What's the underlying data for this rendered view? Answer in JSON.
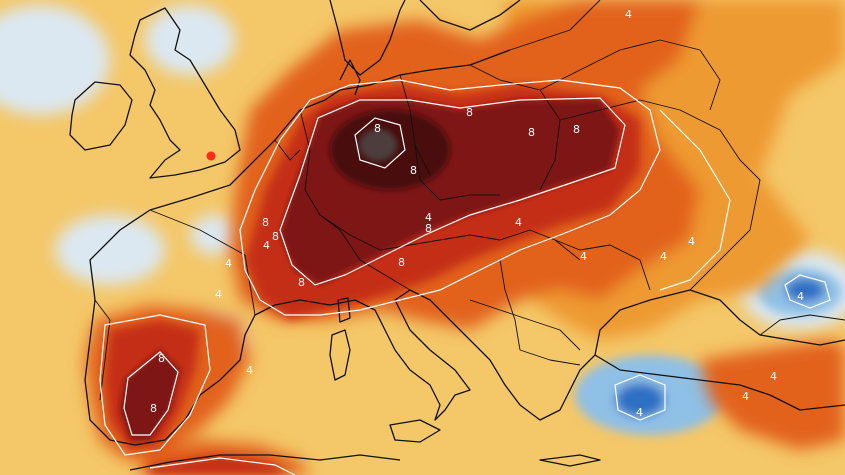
{
  "map": {
    "region": "Europe",
    "variable": "temperature anomaly",
    "colors": {
      "sea_pale": "#f6e9c4",
      "cold_pale": "#dbe8f2",
      "cold_mid": "#8fc0e6",
      "cold_deep": "#2f6fc4",
      "warm_light": "#f4c768",
      "warm_mid": "#ee9a33",
      "warm_orange": "#e2621e",
      "warm_red": "#c42d16",
      "warm_deep": "#7e1212",
      "warm_darkest": "#4a0d0d",
      "extreme": "#4e3c3c",
      "coast_line": "#111111",
      "contour_line": "#ffffff",
      "city_marker": "#ff2a1a"
    },
    "contour_labels": [
      {
        "text": "8"
      },
      {
        "text": "8"
      },
      {
        "text": "8"
      },
      {
        "text": "8"
      },
      {
        "text": "8"
      },
      {
        "text": "8"
      },
      {
        "text": "8"
      },
      {
        "text": "8"
      },
      {
        "text": "8"
      },
      {
        "text": "8"
      },
      {
        "text": "8"
      },
      {
        "text": "8"
      },
      {
        "text": "4"
      },
      {
        "text": "4"
      },
      {
        "text": "4"
      },
      {
        "text": "4"
      },
      {
        "text": "4"
      },
      {
        "text": "4"
      },
      {
        "text": "4"
      },
      {
        "text": "4"
      },
      {
        "text": "4"
      },
      {
        "text": "4"
      },
      {
        "text": "4"
      },
      {
        "text": "4"
      },
      {
        "text": "4"
      },
      {
        "text": "4"
      }
    ],
    "marker": {
      "icon": "location-dot-icon",
      "place": "London"
    }
  }
}
